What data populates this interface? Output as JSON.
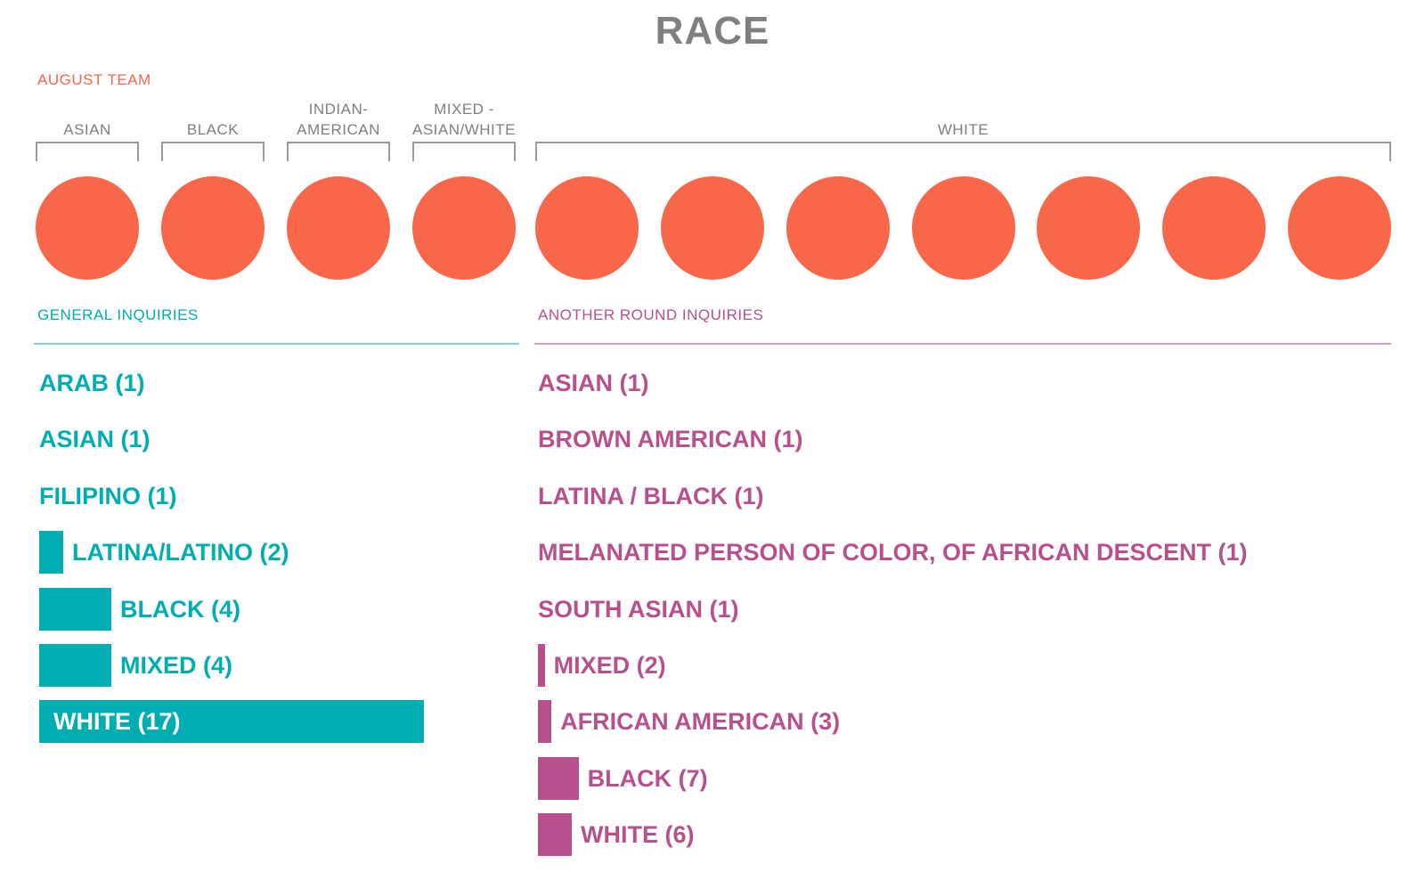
{
  "title": "RACE",
  "colors": {
    "team": "#f9674b",
    "general": "#00aeb2",
    "another": "#b8508e",
    "gray": "#808080"
  },
  "team": {
    "label": "AUGUST TEAM",
    "groups": [
      {
        "label": "ASIAN",
        "count": 1
      },
      {
        "label": "BLACK",
        "count": 1
      },
      {
        "label": "INDIAN-\nAMERICAN",
        "count": 1
      },
      {
        "label": "MIXED -\nASIAN/WHITE",
        "count": 1
      },
      {
        "label": "WHITE",
        "count": 7
      }
    ]
  },
  "general": {
    "header": "GENERAL INQUIRIES"
  },
  "another": {
    "header": "ANOTHER ROUND INQUIRIES"
  },
  "chart_data": [
    {
      "type": "bar",
      "title": "GENERAL INQUIRIES",
      "categories": [
        "ARAB",
        "ASIAN",
        "FILIPINO",
        "LATINA/LATINO",
        "BLACK",
        "MIXED",
        "WHITE"
      ],
      "values": [
        1,
        1,
        1,
        2,
        4,
        4,
        17
      ],
      "labels": [
        "ARAB (1)",
        "ASIAN (1)",
        "FILIPINO (1)",
        "LATINA/LATINO (2)",
        "BLACK (4)",
        "MIXED (4)",
        "WHITE (17)"
      ],
      "color": "#00aeb2"
    },
    {
      "type": "bar",
      "title": "ANOTHER ROUND INQUIRIES",
      "categories": [
        "ASIAN",
        "BROWN AMERICAN",
        "LATINA / BLACK",
        "MELANATED PERSON OF COLOR, OF AFRICAN DESCENT",
        "SOUTH ASIAN",
        "MIXED",
        "AFRICAN AMERICAN",
        "BLACK",
        "WHITE"
      ],
      "values": [
        1,
        1,
        1,
        1,
        1,
        2,
        3,
        7,
        6
      ],
      "labels": [
        "ASIAN (1)",
        "BROWN AMERICAN (1)",
        "LATINA / BLACK (1)",
        "MELANATED PERSON OF COLOR, OF AFRICAN DESCENT (1)",
        "SOUTH ASIAN (1)",
        "MIXED (2)",
        "AFRICAN AMERICAN (3)",
        "BLACK (7)",
        "WHITE (6)"
      ],
      "color": "#b8508e"
    }
  ]
}
